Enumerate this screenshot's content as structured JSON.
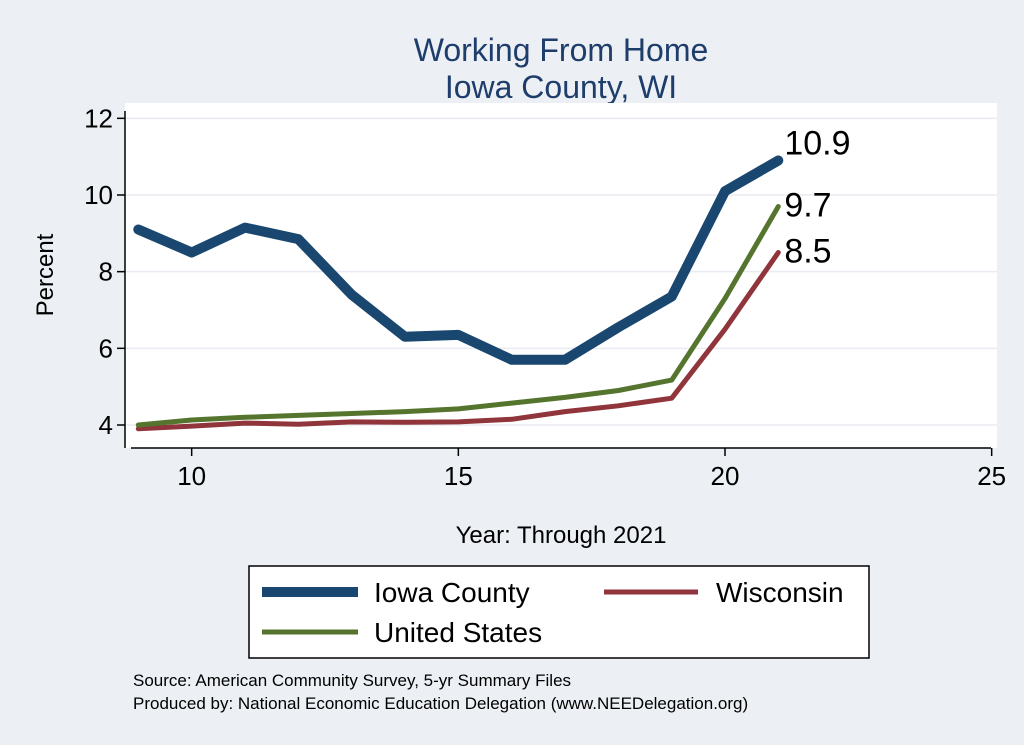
{
  "chart_data": {
    "type": "line",
    "title": [
      "Working From Home",
      "Iowa County, WI"
    ],
    "xlabel": "Year: Through 2021",
    "ylabel": "Percent",
    "xlim": [
      8.75,
      25.1
    ],
    "ylim": [
      3.4,
      12.4
    ],
    "xticks": [
      10,
      15,
      20,
      25
    ],
    "yticks": [
      4,
      6,
      8,
      10,
      12
    ],
    "grid": "horizontal",
    "series": [
      {
        "name": "Iowa County",
        "color": "#1a476f",
        "x": [
          9,
          10,
          11,
          12,
          13,
          14,
          15,
          16,
          17,
          18,
          19,
          20,
          21
        ],
        "values": [
          9.1,
          8.5,
          9.15,
          8.85,
          7.4,
          6.3,
          6.35,
          5.7,
          5.7,
          6.55,
          7.35,
          10.1,
          10.9
        ],
        "end_label": "10.9"
      },
      {
        "name": "Wisconsin",
        "color": "#90353b",
        "x": [
          9,
          10,
          11,
          12,
          13,
          14,
          15,
          16,
          17,
          18,
          19,
          20,
          21
        ],
        "values": [
          3.9,
          3.97,
          4.05,
          4.02,
          4.08,
          4.07,
          4.08,
          4.15,
          4.35,
          4.5,
          4.7,
          6.5,
          8.5
        ],
        "end_label": "8.5"
      },
      {
        "name": "United States",
        "color": "#55752f",
        "x": [
          9,
          10,
          11,
          12,
          13,
          14,
          15,
          16,
          17,
          18,
          19,
          20,
          21
        ],
        "values": [
          4.0,
          4.13,
          4.2,
          4.25,
          4.3,
          4.35,
          4.42,
          4.57,
          4.72,
          4.9,
          5.17,
          7.3,
          9.7
        ],
        "end_label": "9.7"
      }
    ],
    "legend": {
      "position": "bottom",
      "entries": [
        "Iowa County",
        "Wisconsin",
        "United States"
      ]
    },
    "notes": [
      "Source: American Community Survey, 5-yr Summary Files",
      "Produced by: National Economic Education Delegation (www.NEEDelegation.org)"
    ]
  }
}
